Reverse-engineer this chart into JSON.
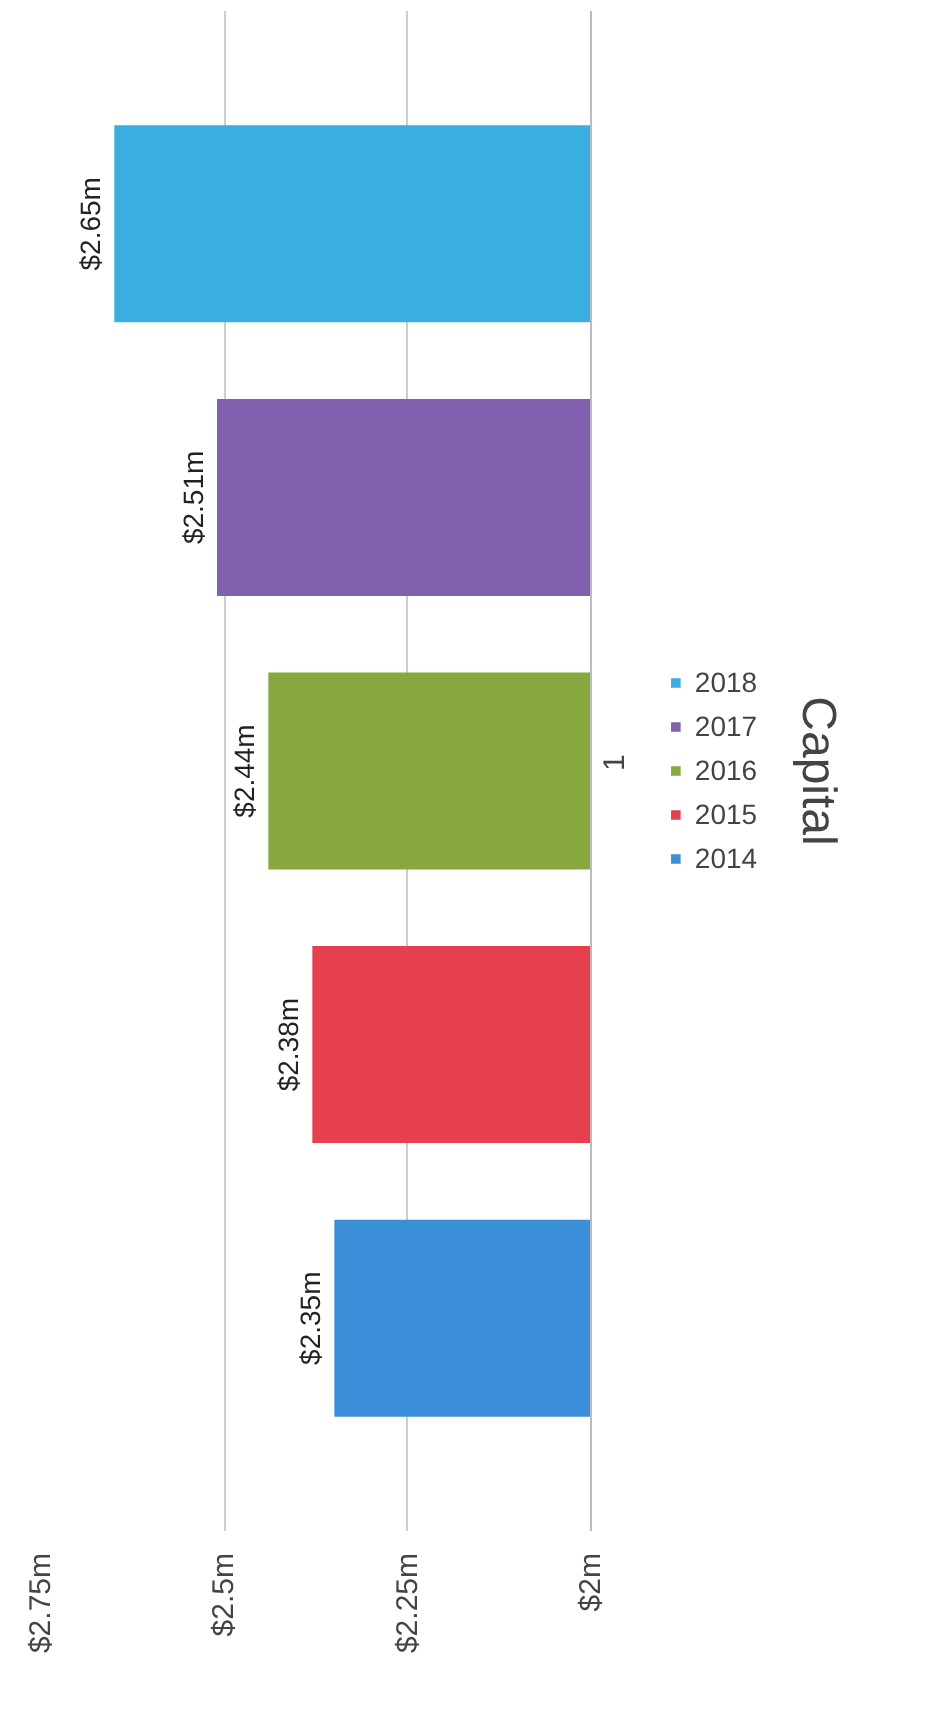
{
  "chart_data": {
    "type": "bar",
    "orientation": "horizontal",
    "title": "Capital",
    "categories": [
      "1"
    ],
    "series": [
      {
        "name": "2014",
        "color": "#3a8fd8",
        "values": [
          2.35
        ],
        "value_labels": [
          "$2.35m"
        ]
      },
      {
        "name": "2015",
        "color": "#e6404f",
        "values": [
          2.38
        ],
        "value_labels": [
          "$2.38m"
        ]
      },
      {
        "name": "2016",
        "color": "#86a83c",
        "values": [
          2.44
        ],
        "value_labels": [
          "$2.44m"
        ]
      },
      {
        "name": "2017",
        "color": "#8260b0",
        "values": [
          2.51
        ],
        "value_labels": [
          "$2.51m"
        ]
      },
      {
        "name": "2018",
        "color": "#3aaee0",
        "values": [
          2.65
        ],
        "value_labels": [
          "$2.65m"
        ]
      }
    ],
    "xlim": [
      2.75,
      2.0
    ],
    "xticks": [
      {
        "value": 2.0,
        "label": "$2m"
      },
      {
        "value": 2.25,
        "label": "$2.25m"
      },
      {
        "value": 2.5,
        "label": "$2.5m"
      },
      {
        "value": 2.75,
        "label": "$2.75m"
      }
    ],
    "grid": "x",
    "legend": "right"
  }
}
